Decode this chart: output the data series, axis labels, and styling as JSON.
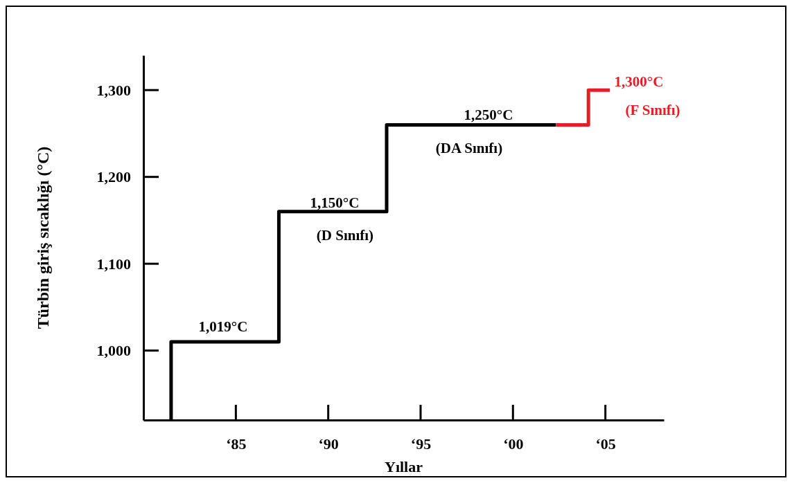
{
  "chart_data": {
    "type": "line",
    "xlabel": "Yıllar",
    "ylabel": "Türbin giriş sıcaklığı (°C)",
    "xlim": [
      "1980",
      "2008-03"
    ],
    "ylim": [
      920,
      1340
    ],
    "xticks": [
      {
        "value": "1985",
        "label": "‘85"
      },
      {
        "value": "1990",
        "label": "‘90"
      },
      {
        "value": "1995",
        "label": "‘95"
      },
      {
        "value": "2000",
        "label": "‘00"
      },
      {
        "value": "2005",
        "label": "‘05"
      }
    ],
    "yticks": [
      {
        "value": 1000,
        "label": "1,000"
      },
      {
        "value": 1100,
        "label": "1,100"
      },
      {
        "value": 1200,
        "label": "1,200"
      },
      {
        "value": 1300,
        "label": "1,300"
      }
    ],
    "grid": false,
    "marker": "none",
    "line_style": "solid",
    "series": [
      {
        "color": "#000000",
        "x": [
          "1981-07",
          "1981-07",
          "1987-05",
          "1987-05",
          "1993-03",
          "1993-03",
          "2002-05"
        ],
        "values": [
          920,
          1010,
          1010,
          1160,
          1160,
          1260,
          1260
        ]
      },
      {
        "color": "#e31e24",
        "x": [
          "2002-05",
          "2004-02",
          "2004-02",
          "2005-04"
        ],
        "values": [
          1260,
          1260,
          1300,
          1300
        ]
      }
    ],
    "annotations": [
      "1,019°C",
      "1,150°C",
      "(D Sınıfı)",
      "1,250°C",
      "(DA Sınıfı)",
      "1,300°C",
      "(F Sınıfı)"
    ]
  }
}
